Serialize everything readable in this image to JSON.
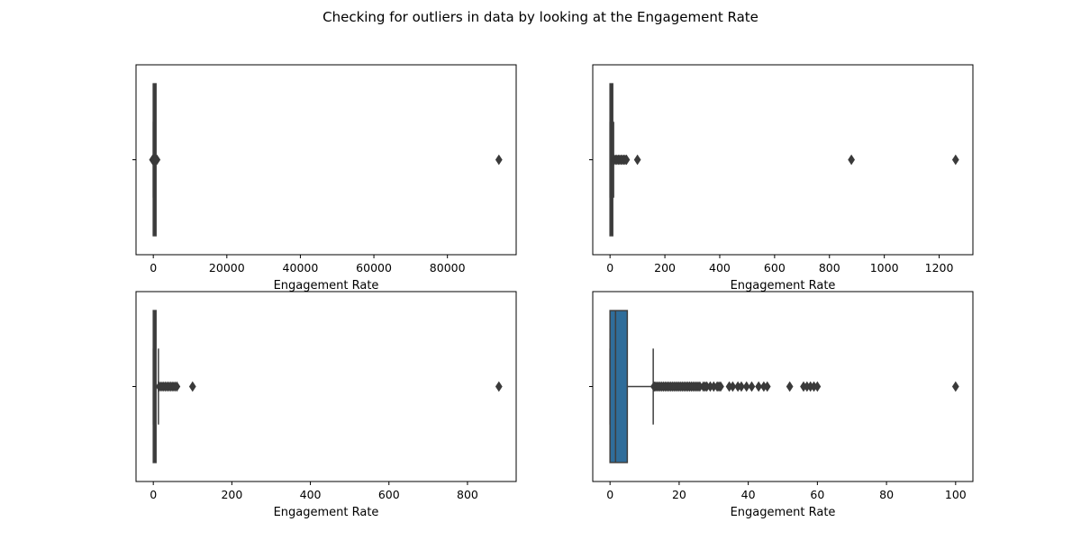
{
  "figure": {
    "title": "Checking for outliers in data by looking at the Engagement Rate"
  },
  "chart_data": [
    {
      "type": "box",
      "panel": "top-left",
      "xlabel": "Engagement Rate",
      "xlim": [
        -4700,
        98700
      ],
      "xticks": [
        0,
        20000,
        40000,
        60000,
        80000
      ],
      "box_color": "#3a3a3a",
      "box": {
        "q1": 0,
        "median": 1,
        "q3": 5,
        "whisker_low": 0,
        "whisker_high": 12
      },
      "outliers": [
        -200,
        100,
        300,
        600,
        1000,
        94000
      ]
    },
    {
      "type": "box",
      "panel": "top-right",
      "xlabel": "Engagement Rate",
      "xlim": [
        -63,
        1323
      ],
      "xticks": [
        0,
        200,
        400,
        600,
        800,
        1000,
        1200
      ],
      "box_color": "#3a3a3a",
      "box": {
        "q1": 0,
        "median": 1,
        "q3": 6,
        "whisker_low": 0,
        "whisker_high": 13
      },
      "outliers": [
        15,
        20,
        25,
        30,
        35,
        40,
        45,
        50,
        55,
        60,
        100,
        880,
        1260
      ]
    },
    {
      "type": "box",
      "panel": "bottom-left",
      "xlabel": "Engagement Rate",
      "xlim": [
        -44,
        924
      ],
      "xticks": [
        0,
        200,
        400,
        600,
        800
      ],
      "box_color": "#3a3a3a",
      "box": {
        "q1": 0,
        "median": 1,
        "q3": 5,
        "whisker_low": 0,
        "whisker_high": 13
      },
      "outliers": [
        15,
        20,
        25,
        30,
        35,
        40,
        45,
        50,
        55,
        60,
        100,
        880
      ]
    },
    {
      "type": "box",
      "panel": "bottom-right",
      "xlabel": "Engagement Rate",
      "xlim": [
        -5,
        105
      ],
      "xticks": [
        0,
        20,
        40,
        60,
        80,
        100
      ],
      "box_color": "#2f6d9a",
      "box": {
        "q1": 0,
        "median": 1.6,
        "q3": 5,
        "whisker_low": 0,
        "whisker_high": 12.5
      },
      "outliers": [
        12.7,
        13,
        13.5,
        14,
        14.5,
        15,
        15.5,
        16,
        16.5,
        17,
        17.5,
        18,
        18.5,
        19,
        19.5,
        20,
        20.5,
        21,
        21.5,
        22,
        22.5,
        23,
        23.5,
        24,
        24.5,
        25,
        25.5,
        26,
        27,
        27.5,
        28,
        29,
        30,
        31,
        31.5,
        32,
        34.5,
        35.5,
        37,
        38,
        39.5,
        41,
        43,
        44.5,
        45.5,
        52,
        56,
        57,
        58,
        59,
        60,
        100
      ]
    }
  ]
}
